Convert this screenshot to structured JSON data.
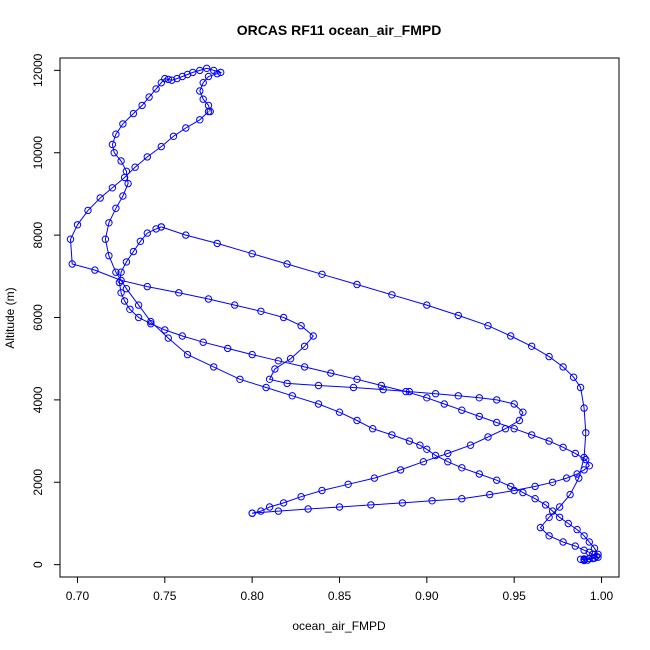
{
  "chart_data": {
    "type": "line",
    "title": "ORCAS RF11 ocean_air_FMPD",
    "xlabel": "ocean_air_FMPD",
    "ylabel": "Altitude (m)",
    "xlim": [
      0.69,
      1.01
    ],
    "ylim": [
      -300,
      12300
    ],
    "xticks": [
      "0.70",
      "0.75",
      "0.80",
      "0.85",
      "0.90",
      "0.95",
      "1.00"
    ],
    "yticks": [
      "0",
      "2000",
      "4000",
      "6000",
      "8000",
      "10000",
      "12000"
    ],
    "xtick_values": [
      0.7,
      0.75,
      0.8,
      0.85,
      0.9,
      0.95,
      1.0
    ],
    "ytick_values": [
      0,
      2000,
      4000,
      6000,
      8000,
      10000,
      12000
    ],
    "series_color": "#0000ff",
    "marker": "open-circle",
    "grid": false,
    "series": [
      {
        "x": [
          0.99,
          0.995,
          0.998,
          0.996,
          0.993,
          0.99,
          0.986,
          0.981,
          0.976,
          0.972,
          0.968,
          0.962,
          0.955,
          0.948,
          0.94,
          0.93,
          0.92,
          0.912,
          0.905,
          0.9,
          0.896,
          0.89,
          0.88,
          0.869,
          0.86,
          0.85,
          0.838,
          0.823,
          0.808,
          0.793,
          0.778,
          0.763,
          0.752,
          0.742,
          0.735,
          0.728,
          0.722,
          0.718,
          0.716,
          0.718,
          0.722,
          0.726,
          0.729,
          0.728,
          0.725,
          0.721,
          0.72,
          0.722,
          0.726,
          0.732,
          0.737,
          0.741,
          0.745,
          0.748,
          0.75,
          0.752,
          0.754,
          0.757,
          0.76,
          0.763,
          0.766,
          0.77,
          0.774,
          0.778,
          0.782,
          0.78,
          0.775,
          0.772,
          0.77,
          0.772,
          0.775,
          0.776
        ],
        "y": [
          100,
          150,
          250,
          400,
          550,
          700,
          850,
          1000,
          1150,
          1300,
          1450,
          1600,
          1750,
          1900,
          2050,
          2200,
          2350,
          2500,
          2650,
          2800,
          2900,
          3000,
          3150,
          3300,
          3500,
          3700,
          3900,
          4100,
          4300,
          4500,
          4800,
          5100,
          5500,
          5900,
          6300,
          6700,
          7100,
          7500,
          7900,
          8300,
          8650,
          8950,
          9250,
          9550,
          9800,
          10000,
          10200,
          10450,
          10700,
          10950,
          11150,
          11350,
          11550,
          11700,
          11800,
          11780,
          11760,
          11800,
          11850,
          11900,
          11950,
          12000,
          12050,
          12000,
          11950,
          11920,
          11850,
          11700,
          11500,
          11300,
          11150,
          11000
        ]
      },
      {
        "x": [
          0.775,
          0.77,
          0.762,
          0.755,
          0.748,
          0.74,
          0.733,
          0.727,
          0.72,
          0.713,
          0.706,
          0.7,
          0.696,
          0.697,
          0.71,
          0.725,
          0.74,
          0.758,
          0.775,
          0.79,
          0.805,
          0.818,
          0.828,
          0.835,
          0.83,
          0.822,
          0.813,
          0.81,
          0.82,
          0.838,
          0.858,
          0.875,
          0.89,
          0.905,
          0.918,
          0.93,
          0.94,
          0.95,
          0.955,
          0.953,
          0.945,
          0.935,
          0.925,
          0.912,
          0.898,
          0.885,
          0.87,
          0.855,
          0.84,
          0.828,
          0.818,
          0.81,
          0.805,
          0.8
        ],
        "y": [
          11000,
          10800,
          10600,
          10400,
          10150,
          9900,
          9650,
          9400,
          9150,
          8900,
          8600,
          8250,
          7900,
          7300,
          7150,
          6900,
          6750,
          6600,
          6450,
          6300,
          6150,
          6000,
          5800,
          5550,
          5300,
          5000,
          4750,
          4500,
          4400,
          4350,
          4300,
          4250,
          4200,
          4150,
          4100,
          4050,
          4000,
          3900,
          3700,
          3500,
          3300,
          3100,
          2900,
          2700,
          2500,
          2300,
          2100,
          1950,
          1800,
          1650,
          1500,
          1400,
          1300,
          1250
        ]
      },
      {
        "x": [
          0.8,
          0.815,
          0.832,
          0.85,
          0.868,
          0.886,
          0.903,
          0.92,
          0.936,
          0.95,
          0.962,
          0.972,
          0.98,
          0.986,
          0.99,
          0.993,
          0.991,
          0.985,
          0.978,
          0.97,
          0.96,
          0.95,
          0.94,
          0.93,
          0.92,
          0.91,
          0.9,
          0.888,
          0.874,
          0.86,
          0.845,
          0.83,
          0.815,
          0.8,
          0.786,
          0.772,
          0.76,
          0.75,
          0.742,
          0.735,
          0.73,
          0.727,
          0.725,
          0.724,
          0.725,
          0.728,
          0.732,
          0.736,
          0.74,
          0.745,
          0.748
        ],
        "y": [
          1250,
          1300,
          1350,
          1400,
          1450,
          1500,
          1550,
          1600,
          1700,
          1800,
          1900,
          2000,
          2100,
          2200,
          2300,
          2400,
          2550,
          2700,
          2850,
          3000,
          3150,
          3300,
          3450,
          3600,
          3750,
          3900,
          4050,
          4200,
          4350,
          4500,
          4650,
          4800,
          4950,
          5100,
          5250,
          5400,
          5550,
          5700,
          5850,
          6000,
          6200,
          6400,
          6600,
          6850,
          7100,
          7350,
          7600,
          7850,
          8050,
          8150,
          8200
        ]
      },
      {
        "x": [
          0.748,
          0.762,
          0.78,
          0.8,
          0.82,
          0.84,
          0.86,
          0.88,
          0.9,
          0.918,
          0.935,
          0.948,
          0.96,
          0.97,
          0.978,
          0.984,
          0.988,
          0.99,
          0.991,
          0.99,
          0.987,
          0.982,
          0.976,
          0.97,
          0.965,
          0.97,
          0.978,
          0.985,
          0.99,
          0.993,
          0.995,
          0.997,
          0.998,
          0.996,
          0.993,
          0.99,
          0.988,
          0.99,
          0.992
        ],
        "y": [
          8200,
          8000,
          7800,
          7550,
          7300,
          7050,
          6800,
          6550,
          6300,
          6050,
          5800,
          5550,
          5300,
          5050,
          4800,
          4550,
          4300,
          3800,
          3200,
          2600,
          2100,
          1700,
          1400,
          1150,
          900,
          700,
          550,
          450,
          350,
          300,
          250,
          200,
          180,
          160,
          150,
          140,
          130,
          120,
          110
        ]
      }
    ]
  }
}
